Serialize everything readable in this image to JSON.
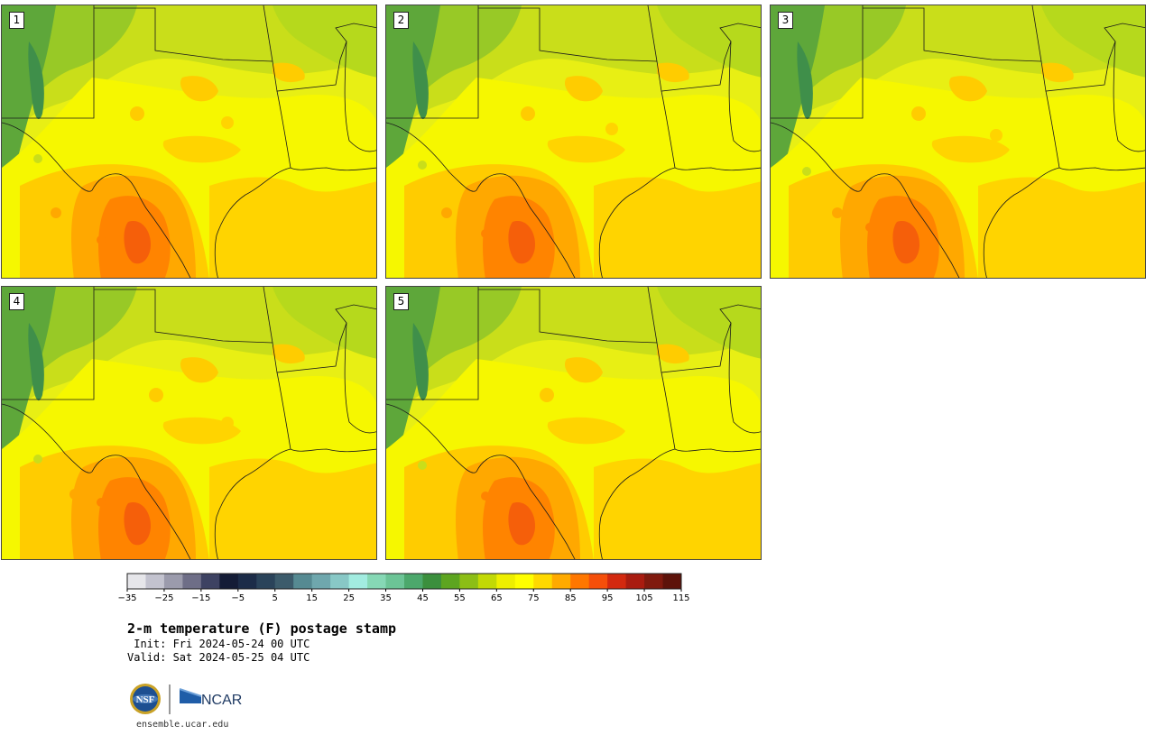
{
  "panels": [
    {
      "label": "1"
    },
    {
      "label": "2"
    },
    {
      "label": "3"
    },
    {
      "label": "4"
    },
    {
      "label": "5"
    }
  ],
  "colorbar": {
    "colors": [
      "#e6e6ea",
      "#c3c3cf",
      "#9b9bac",
      "#6e6e87",
      "#3d4262",
      "#141c36",
      "#1c2c48",
      "#2a435a",
      "#3c5b6b",
      "#568a92",
      "#6fa7ad",
      "#88c8c6",
      "#a2ece0",
      "#86d8b5",
      "#6cc496",
      "#4ca86c",
      "#3b8f3d",
      "#5da520",
      "#8cbe16",
      "#c2d905",
      "#eeef00",
      "#ffff00",
      "#ffd900",
      "#ffaa00",
      "#ff7700",
      "#f54f0a",
      "#d3290f",
      "#a91c10",
      "#801a0e",
      "#5d130a"
    ],
    "tick_labels": [
      "−35",
      "−25",
      "−15",
      "−5",
      "5",
      "15",
      "25",
      "35",
      "45",
      "55",
      "65",
      "75",
      "85",
      "95",
      "105",
      "115"
    ]
  },
  "title": "2-m temperature (F) postage stamp",
  "init": " Init: Fri 2024-05-24 00 UTC",
  "valid": "Valid: Sat 2024-05-25 04 UTC",
  "logos": {
    "nsf": "NSF",
    "ncar": "NCAR"
  },
  "url": "ensemble.ucar.edu"
}
